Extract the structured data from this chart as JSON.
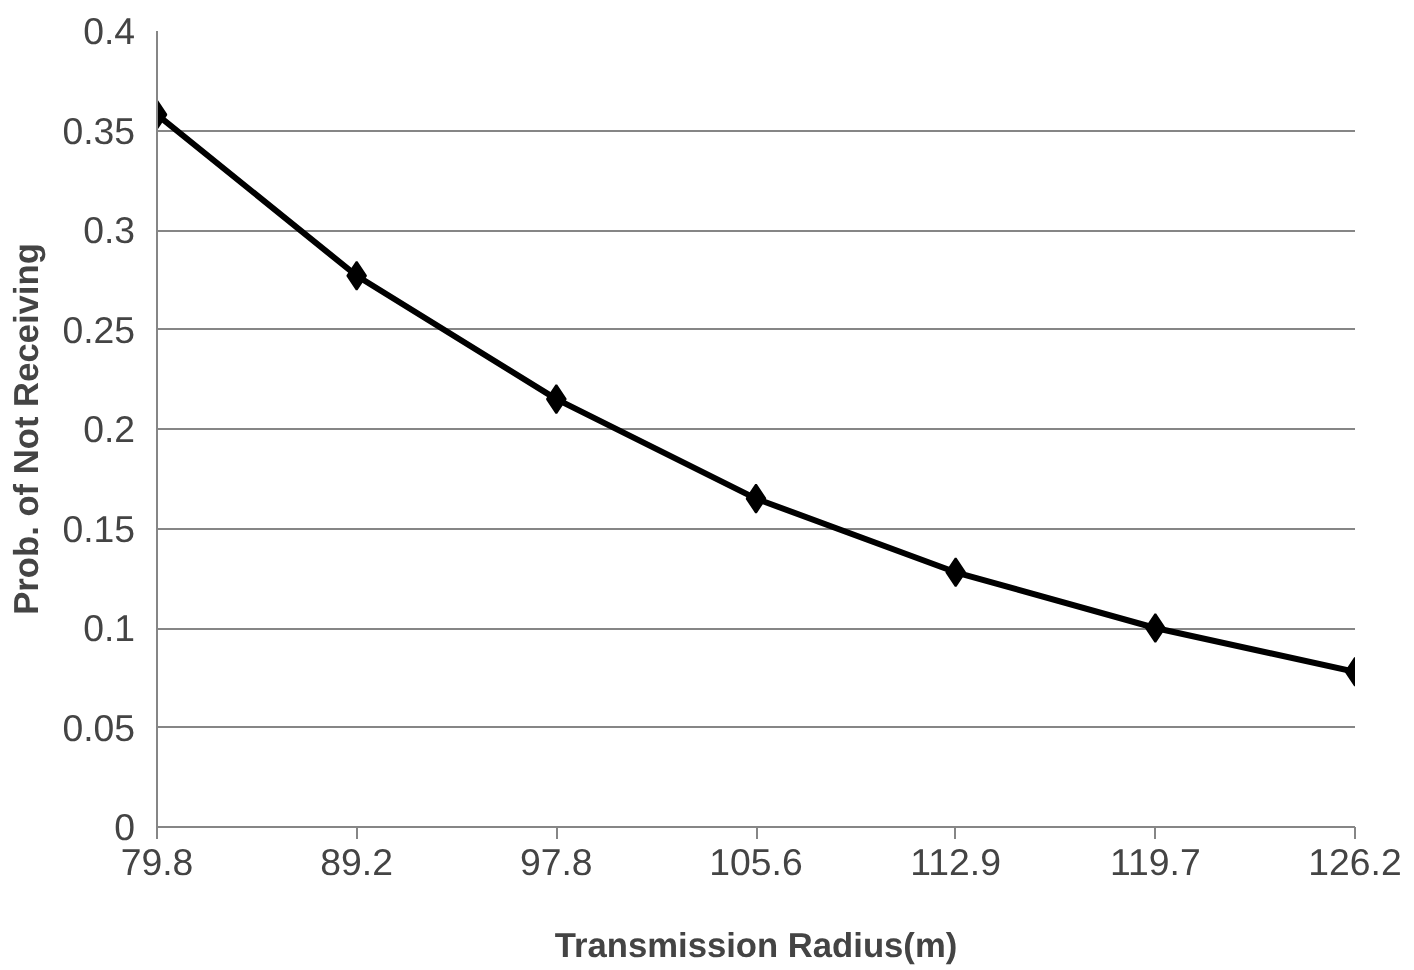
{
  "chart_data": {
    "type": "line",
    "xlabel": "Transmission Radius(m)",
    "ylabel": "Prob. of Not Receiving",
    "categories": [
      "79.8",
      "89.2",
      "97.8",
      "105.6",
      "112.9",
      "119.7",
      "126.2"
    ],
    "series": [
      {
        "color": "#000000",
        "values": [
          0.358,
          0.277,
          0.215,
          0.165,
          0.128,
          0.1,
          0.078
        ]
      }
    ],
    "ylim": [
      0,
      0.4
    ],
    "yticks": [
      0,
      0.05,
      0.1,
      0.15,
      0.2,
      0.25,
      0.3,
      0.35,
      0.4
    ],
    "grid": "y",
    "marker": "diamond",
    "line_style": "solid"
  }
}
